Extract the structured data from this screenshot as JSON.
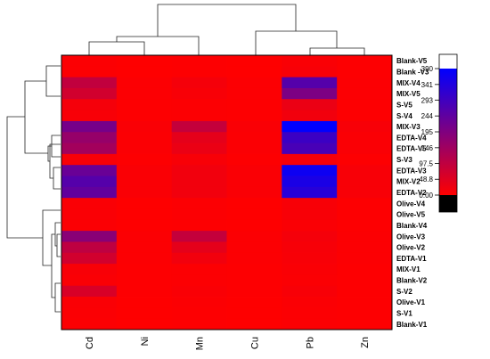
{
  "chart_data": {
    "type": "heatmap",
    "title": "",
    "columns": [
      "Cd",
      "Ni",
      "Mn",
      "Cu",
      "Pb",
      "Zn"
    ],
    "rows": [
      "Blank-V5",
      "Blank -V3",
      "MIX-V4",
      "MIX-V5",
      "S-V5",
      "S-V4",
      "MIX-V3",
      "EDTA-V4",
      "EDTA-V5",
      "S-V3",
      "EDTA-V3",
      "MIX-V2",
      "EDTA-V2",
      "Olive-V4",
      "Olive-V5",
      "Blank-V4",
      "Olive-V3",
      "Olive-V2",
      "EDTA-V1",
      "MIX-V1",
      "Blank-V2",
      "S-V2",
      "Olive-V1",
      "S-V1",
      "Blank-V1"
    ],
    "values": [
      [
        5,
        2,
        3,
        2,
        8,
        3
      ],
      [
        5,
        2,
        3,
        2,
        10,
        3
      ],
      [
        95,
        5,
        15,
        5,
        260,
        5
      ],
      [
        70,
        5,
        10,
        5,
        200,
        5
      ],
      [
        15,
        3,
        5,
        3,
        30,
        3
      ],
      [
        10,
        3,
        5,
        3,
        20,
        3
      ],
      [
        210,
        8,
        90,
        8,
        390,
        10
      ],
      [
        160,
        6,
        40,
        6,
        300,
        8
      ],
      [
        140,
        6,
        30,
        6,
        280,
        8
      ],
      [
        10,
        3,
        10,
        3,
        15,
        3
      ],
      [
        230,
        8,
        20,
        8,
        370,
        10
      ],
      [
        260,
        8,
        20,
        8,
        350,
        10
      ],
      [
        240,
        8,
        20,
        8,
        330,
        10
      ],
      [
        8,
        2,
        4,
        2,
        10,
        3
      ],
      [
        8,
        2,
        4,
        2,
        10,
        3
      ],
      [
        6,
        2,
        3,
        2,
        8,
        3
      ],
      [
        180,
        5,
        90,
        5,
        15,
        5
      ],
      [
        100,
        5,
        40,
        5,
        12,
        5
      ],
      [
        70,
        5,
        20,
        5,
        10,
        5
      ],
      [
        10,
        3,
        5,
        3,
        8,
        3
      ],
      [
        8,
        3,
        4,
        3,
        6,
        3
      ],
      [
        60,
        3,
        8,
        3,
        10,
        3
      ],
      [
        8,
        2,
        4,
        2,
        6,
        3
      ],
      [
        6,
        2,
        3,
        2,
        5,
        3
      ],
      [
        5,
        2,
        3,
        2,
        5,
        3
      ]
    ],
    "colorbar": {
      "ticks": [
        "390",
        "341",
        "293",
        "244",
        "195",
        "146",
        "97.5",
        "48.8",
        "0.00"
      ],
      "tick_values": [
        390,
        341,
        293,
        244,
        195,
        146,
        97.5,
        48.8,
        0
      ],
      "range": [
        0,
        390
      ],
      "colors": {
        "low": "#ff0000",
        "high": "#0000ff",
        "top_cap": "#ffffff",
        "bottom_cap": "#000000"
      }
    }
  }
}
